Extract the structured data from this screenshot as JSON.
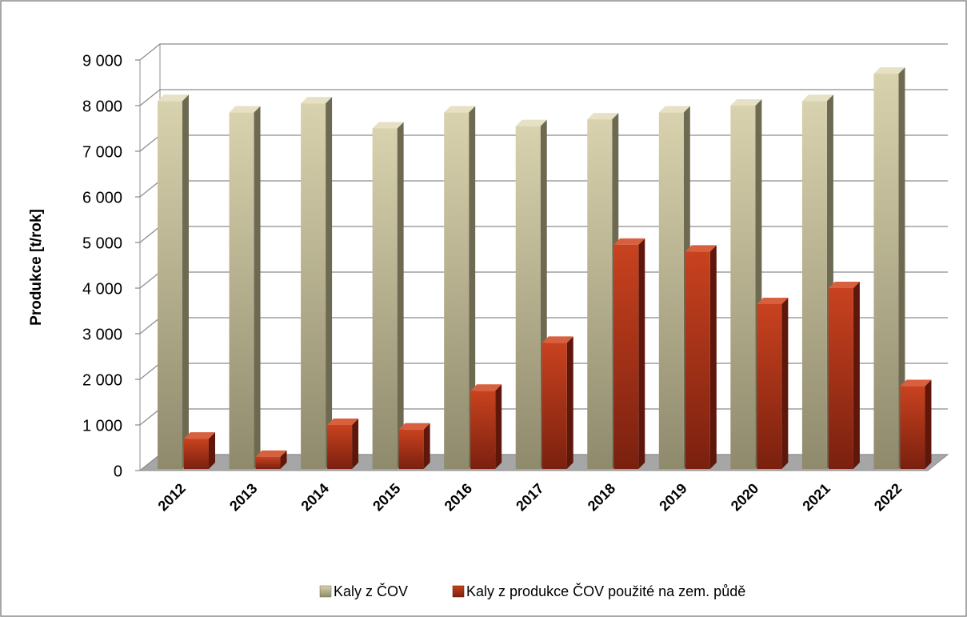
{
  "chart_data": {
    "type": "bar3d",
    "y_label": "Produkce [t/rok]",
    "categories": [
      "2012",
      "2013",
      "2014",
      "2015",
      "2016",
      "2017",
      "2018",
      "2019",
      "2020",
      "2021",
      "2022"
    ],
    "series": [
      {
        "name": "Kaly z ČOV",
        "color": "#c4bd97",
        "values": [
          8100,
          7850,
          8050,
          7500,
          7850,
          7550,
          7700,
          7850,
          8000,
          8100,
          8700
        ]
      },
      {
        "name": "Kaly z produkce ČOV použité na zem. půdě",
        "color": "#a8321c",
        "values": [
          700,
          300,
          1000,
          900,
          1750,
          2800,
          4950,
          4800,
          3650,
          4000,
          1850
        ]
      }
    ],
    "ylim": [
      0,
      9000
    ],
    "yticks": [
      0,
      {
        "value": 1000,
        "label": "1 000"
      },
      {
        "value": 2000,
        "label": "2 000"
      },
      {
        "value": 3000,
        "label": "3 000"
      },
      {
        "value": 4000,
        "label": "4 000"
      },
      {
        "value": 5000,
        "label": "5 000"
      },
      {
        "value": 6000,
        "label": "6 000"
      },
      {
        "value": 7000,
        "label": "7 000"
      },
      {
        "value": 8000,
        "label": "8 000"
      },
      {
        "value": 9000,
        "label": "9 000"
      }
    ],
    "grid": true,
    "legend": "bottom"
  }
}
